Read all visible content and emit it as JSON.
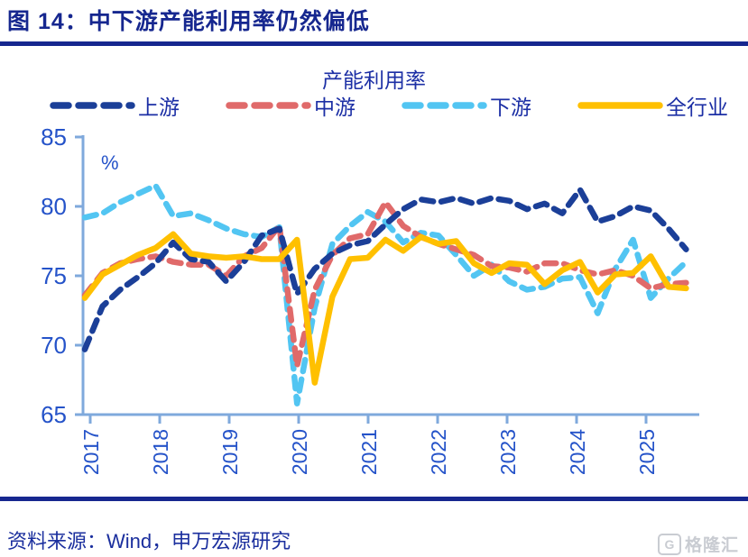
{
  "figure": {
    "title": "图 14：中下游产能利用率仍然偏低",
    "source": "资料来源：Wind，申万宏源研究",
    "watermark_text": "格隆汇",
    "watermark_icon": "G",
    "accent_color": "#16278F"
  },
  "chart_data": {
    "type": "line",
    "title": "产能利用率",
    "unit_label": "%",
    "grid": false,
    "legend_position": "top",
    "ylim": [
      65,
      85
    ],
    "yticks": [
      65,
      70,
      75,
      80,
      85
    ],
    "x_tick_labels": [
      "2017",
      "2018",
      "2019",
      "2020",
      "2021",
      "2022",
      "2023",
      "2024",
      "2025"
    ],
    "x": [
      "2017Q1",
      "2017Q2",
      "2017Q3",
      "2017Q4",
      "2018Q1",
      "2018Q2",
      "2018Q3",
      "2018Q4",
      "2019Q1",
      "2019Q2",
      "2019Q3",
      "2019Q4",
      "2020Q1",
      "2020Q2",
      "2020Q3",
      "2020Q4",
      "2021Q1",
      "2021Q2",
      "2021Q3",
      "2021Q4",
      "2022Q1",
      "2022Q2",
      "2022Q3",
      "2022Q4",
      "2023Q1",
      "2023Q2",
      "2023Q3",
      "2023Q4",
      "2024Q1",
      "2024Q2",
      "2024Q3",
      "2024Q4",
      "2025Q1",
      "2025Q2",
      "2025Q3"
    ],
    "series": [
      {
        "name": "上游",
        "style": "dashed",
        "color": "#1B3F98",
        "values": [
          69.7,
          72.8,
          74.0,
          74.9,
          75.9,
          77.4,
          76.2,
          76.0,
          74.6,
          76.0,
          77.9,
          78.4,
          73.7,
          75.5,
          76.6,
          77.2,
          77.5,
          78.7,
          79.8,
          80.5,
          80.3,
          80.6,
          80.2,
          80.6,
          80.4,
          79.8,
          80.2,
          79.5,
          81.2,
          78.9,
          79.3,
          80.0,
          79.7,
          78.4,
          76.9
        ]
      },
      {
        "name": "中游",
        "style": "dashed",
        "color": "#E06A6A",
        "values": [
          73.6,
          75.2,
          75.9,
          76.2,
          76.4,
          76.0,
          75.8,
          75.8,
          75.0,
          76.4,
          77.0,
          78.6,
          68.5,
          74.0,
          76.5,
          77.7,
          78.0,
          80.3,
          78.6,
          77.8,
          77.3,
          76.9,
          76.5,
          75.7,
          75.6,
          75.3,
          75.9,
          75.9,
          75.4,
          75.1,
          75.4,
          75.0,
          74.1,
          74.4,
          74.5
        ]
      },
      {
        "name": "下游",
        "style": "dashed",
        "color": "#52C5F2",
        "values": [
          79.2,
          79.5,
          80.3,
          80.9,
          81.5,
          79.3,
          79.5,
          79.0,
          78.4,
          78.0,
          77.8,
          78.5,
          65.8,
          72.7,
          77.3,
          78.6,
          79.6,
          78.9,
          77.4,
          78.1,
          77.9,
          76.5,
          75.0,
          75.8,
          74.6,
          74.0,
          74.2,
          74.8,
          74.9,
          72.3,
          75.5,
          77.6,
          73.4,
          74.8,
          76.0
        ]
      },
      {
        "name": "全行业",
        "style": "solid",
        "color": "#FFC000",
        "values": [
          73.4,
          75.1,
          75.8,
          76.5,
          77.0,
          78.0,
          76.6,
          76.4,
          76.3,
          76.4,
          76.2,
          76.2,
          77.6,
          67.3,
          73.5,
          76.2,
          76.3,
          77.6,
          76.8,
          77.8,
          77.3,
          77.5,
          75.9,
          75.2,
          75.9,
          75.8,
          74.4,
          75.4,
          76.0,
          73.8,
          75.1,
          75.2,
          76.4,
          74.2,
          74.1
        ]
      }
    ],
    "axis_line_color": "#7FA9DC",
    "axis_text_color": "#2553C9"
  }
}
